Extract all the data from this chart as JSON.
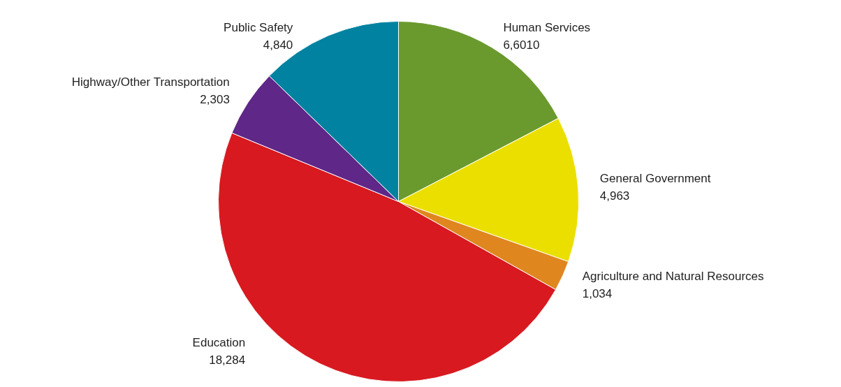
{
  "chart_data": {
    "type": "pie",
    "categories": [
      "Human Services",
      "General Government",
      "Agriculture and Natural Resources",
      "Education",
      "Highway/Other Transportation",
      "Public Safety"
    ],
    "values": [
      6601,
      4963,
      1034,
      18284,
      2303,
      4840
    ],
    "value_labels": [
      "6,6010",
      "4,963",
      "1,034",
      "18,284",
      "2,303",
      "4,840"
    ],
    "colors": [
      "#6a9a2e",
      "#ebdf00",
      "#e0861f",
      "#d81920",
      "#5f2787",
      "#0082a0"
    ]
  }
}
